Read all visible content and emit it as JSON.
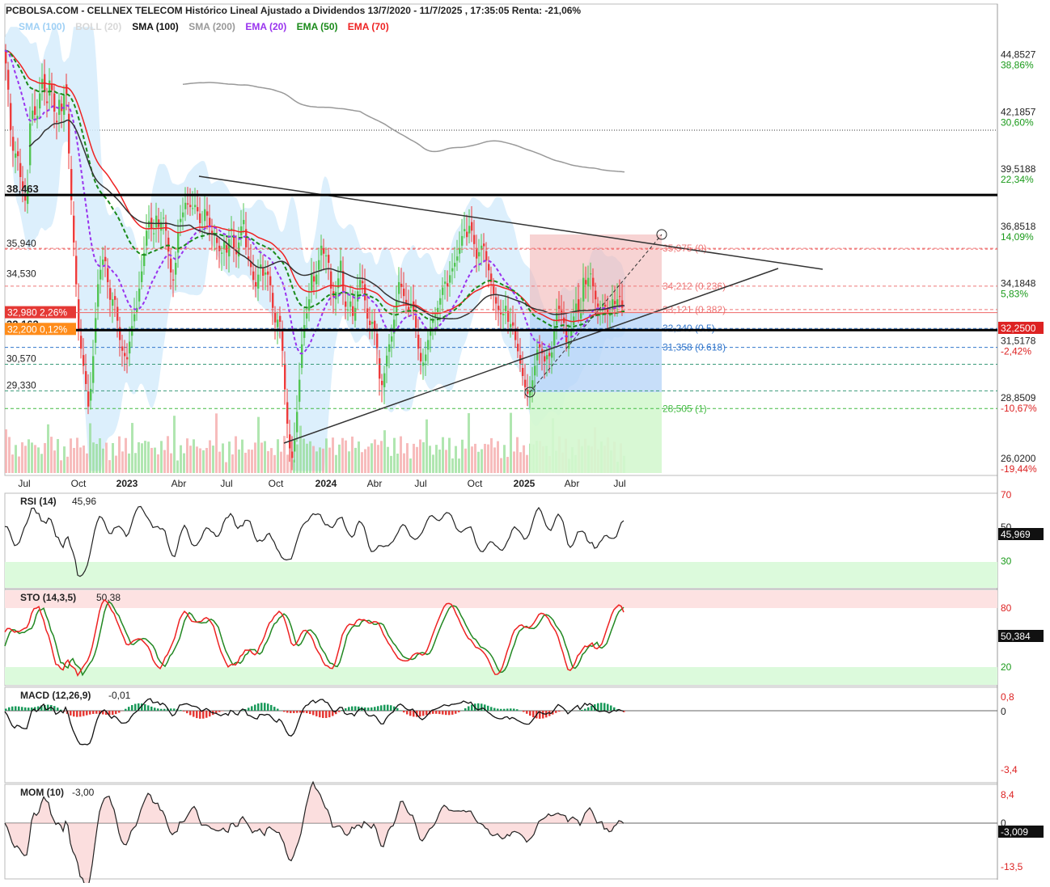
{
  "title": "PCBOLSA.COM - CELLNEX TELECOM Histórico Lineal Ajustado a Dividendos 13/7/2020 - 11/7/2025 , 17:35:05 Renta: -21,06%",
  "legend": [
    {
      "label": "SMA (100)",
      "color": "#9fd0f5"
    },
    {
      "label": "BOLL (20)",
      "color": "#d8d8d8"
    },
    {
      "label": "SMA (100)",
      "color": "#111111"
    },
    {
      "label": "SMA (200)",
      "color": "#999999"
    },
    {
      "label": "EMA (20)",
      "color": "#9933ee"
    },
    {
      "label": "EMA (50)",
      "color": "#1a8a1a"
    },
    {
      "label": "EMA (70)",
      "color": "#ee2222"
    }
  ],
  "colors": {
    "up": "#52c552",
    "down": "#ee3b3b",
    "fib_red": "#ee7777",
    "fib_blue": "#3377cc",
    "fib_green": "#44bb44",
    "price_tag": "#dd2222",
    "rsi_line": "#222222",
    "sto_k": "#ee2222",
    "sto_d": "#228822",
    "zone_green": "#dcfadc",
    "zone_red": "#fde2e2"
  },
  "chart_data": [
    {
      "type": "line",
      "title": "CELLNEX TELECOM",
      "x_tick_labels": [
        "Jul",
        "Oct",
        "2023",
        "Abr",
        "Jul",
        "Oct",
        "2024",
        "Abr",
        "Jul",
        "Oct",
        "2025",
        "Abr",
        "Jul"
      ],
      "y_tick_labels": [
        {
          "price": "44,8527",
          "pct": "38,86%"
        },
        {
          "price": "42,1857",
          "pct": "30,60%"
        },
        {
          "price": "39,5188",
          "pct": "22,34%"
        },
        {
          "price": "36,8518",
          "pct": "14,09%"
        },
        {
          "price": "34,1848",
          "pct": "5,83%"
        },
        {
          "price": "31,5178",
          "pct": "-2,42%"
        },
        {
          "price": "28,8509",
          "pct": "-10,67%"
        },
        {
          "price": "26,0200",
          "pct": "-19,44%"
        }
      ],
      "ylim": [
        25.5,
        46.5
      ],
      "last_price": "32,2500",
      "left_levels": [
        {
          "label": "38,463",
          "value": 38.463
        },
        {
          "label": "35,940",
          "value": 35.94
        },
        {
          "label": "34,530",
          "value": 34.53
        },
        {
          "label": "32,980  2,26%",
          "value": 32.98
        },
        {
          "label": "32,163",
          "value": 32.163
        },
        {
          "label": "32,200  0,12%",
          "value": 32.2
        },
        {
          "label": "30,570",
          "value": 30.57
        },
        {
          "label": "29,330",
          "value": 29.33
        }
      ],
      "fibonacci": [
        {
          "label": "35,975 (0)",
          "value": 35.975
        },
        {
          "label": "34,212 (0.236)",
          "value": 34.212
        },
        {
          "label": "33,121 (0.382)",
          "value": 33.121
        },
        {
          "label": "32,240 (0.5)",
          "value": 32.24
        },
        {
          "label": "31,358 (0.618)",
          "value": 31.358
        },
        {
          "label": "28,505 (1)",
          "value": 28.505
        }
      ],
      "close_points": [
        [
          0,
          45.2
        ],
        [
          4,
          44.0
        ],
        [
          8,
          41.5
        ],
        [
          12,
          40.2
        ],
        [
          16,
          40.6
        ],
        [
          20,
          39.3
        ],
        [
          24,
          38.5
        ],
        [
          28,
          37.9
        ],
        [
          32,
          41.8
        ],
        [
          36,
          42.6
        ],
        [
          40,
          41.8
        ],
        [
          44,
          43.2
        ],
        [
          48,
          44.1
        ],
        [
          52,
          42.4
        ],
        [
          56,
          43.8
        ],
        [
          60,
          43.2
        ],
        [
          64,
          41.5
        ],
        [
          68,
          42.9
        ],
        [
          72,
          42.2
        ],
        [
          76,
          44.1
        ],
        [
          80,
          40.4
        ],
        [
          84,
          37.5
        ],
        [
          88,
          35.0
        ],
        [
          92,
          32.2
        ],
        [
          96,
          31.0
        ],
        [
          100,
          30.0
        ],
        [
          104,
          28.6
        ],
        [
          108,
          29.7
        ],
        [
          112,
          32.2
        ],
        [
          116,
          34.3
        ],
        [
          120,
          35.2
        ],
        [
          124,
          35.7
        ],
        [
          128,
          34.4
        ],
        [
          132,
          33.3
        ],
        [
          136,
          33.9
        ],
        [
          140,
          32.6
        ],
        [
          144,
          31.4
        ],
        [
          148,
          31.0
        ],
        [
          152,
          30.8
        ],
        [
          156,
          31.9
        ],
        [
          160,
          32.8
        ],
        [
          164,
          33.2
        ],
        [
          168,
          34.4
        ],
        [
          172,
          35.4
        ],
        [
          176,
          36.8
        ],
        [
          180,
          37.4
        ],
        [
          184,
          36.4
        ],
        [
          188,
          37.5
        ],
        [
          192,
          36.8
        ],
        [
          196,
          37.6
        ],
        [
          200,
          36.8
        ],
        [
          204,
          35.5
        ],
        [
          208,
          34.2
        ],
        [
          212,
          35.3
        ],
        [
          216,
          37.2
        ],
        [
          220,
          37.5
        ],
        [
          224,
          38.1
        ],
        [
          228,
          38.0
        ],
        [
          232,
          37.8
        ],
        [
          236,
          38.0
        ],
        [
          240,
          37.6
        ],
        [
          244,
          36.7
        ],
        [
          248,
          37.8
        ],
        [
          252,
          37.4
        ],
        [
          256,
          36.6
        ],
        [
          260,
          36.6
        ],
        [
          264,
          36.1
        ],
        [
          268,
          35.6
        ],
        [
          272,
          36.3
        ],
        [
          276,
          35.6
        ],
        [
          280,
          37.2
        ],
        [
          284,
          36.0
        ],
        [
          288,
          35.6
        ],
        [
          292,
          36.9
        ],
        [
          296,
          37.3
        ],
        [
          300,
          35.6
        ],
        [
          304,
          35.3
        ],
        [
          308,
          34.5
        ],
        [
          312,
          34.1
        ],
        [
          316,
          35.4
        ],
        [
          320,
          34.7
        ],
        [
          324,
          34.9
        ],
        [
          328,
          34.6
        ],
        [
          332,
          33.2
        ],
        [
          336,
          32.3
        ],
        [
          340,
          33.0
        ],
        [
          344,
          31.2
        ],
        [
          348,
          28.8
        ],
        [
          352,
          26.8
        ],
        [
          356,
          26.2
        ],
        [
          360,
          27.4
        ],
        [
          364,
          29.3
        ],
        [
          368,
          31.5
        ],
        [
          372,
          32.7
        ],
        [
          376,
          33.2
        ],
        [
          380,
          34.8
        ],
        [
          384,
          34.3
        ],
        [
          388,
          35.2
        ],
        [
          392,
          36.1
        ],
        [
          396,
          35.6
        ],
        [
          400,
          35.7
        ],
        [
          404,
          34.1
        ],
        [
          408,
          33.6
        ],
        [
          412,
          34.3
        ],
        [
          416,
          35.4
        ],
        [
          420,
          33.5
        ],
        [
          424,
          33.0
        ],
        [
          428,
          33.5
        ],
        [
          432,
          32.6
        ],
        [
          436,
          33.8
        ],
        [
          440,
          34.5
        ],
        [
          444,
          34.3
        ],
        [
          448,
          32.8
        ],
        [
          452,
          32.4
        ],
        [
          456,
          32.6
        ],
        [
          460,
          31.8
        ],
        [
          464,
          29.9
        ],
        [
          468,
          29.5
        ],
        [
          472,
          30.8
        ],
        [
          476,
          31.5
        ],
        [
          480,
          32.0
        ],
        [
          484,
          33.3
        ],
        [
          488,
          34.4
        ],
        [
          492,
          34.1
        ],
        [
          496,
          33.4
        ],
        [
          500,
          33.1
        ],
        [
          504,
          33.5
        ],
        [
          508,
          32.6
        ],
        [
          512,
          31.3
        ],
        [
          516,
          30.5
        ],
        [
          520,
          30.8
        ],
        [
          524,
          31.7
        ],
        [
          528,
          32.5
        ],
        [
          532,
          32.8
        ],
        [
          536,
          33.2
        ],
        [
          540,
          33.8
        ],
        [
          544,
          34.5
        ],
        [
          548,
          34.2
        ],
        [
          552,
          34.9
        ],
        [
          556,
          35.2
        ],
        [
          560,
          35.6
        ],
        [
          564,
          36.1
        ],
        [
          568,
          37.0
        ],
        [
          572,
          36.5
        ],
        [
          576,
          37.2
        ],
        [
          580,
          36.4
        ],
        [
          584,
          35.5
        ],
        [
          588,
          35.9
        ],
        [
          592,
          36.3
        ],
        [
          596,
          35.4
        ],
        [
          600,
          34.8
        ],
        [
          604,
          34.0
        ],
        [
          608,
          33.4
        ],
        [
          612,
          33.0
        ],
        [
          616,
          32.8
        ],
        [
          620,
          33.3
        ],
        [
          624,
          32.3
        ],
        [
          628,
          32.6
        ],
        [
          632,
          31.7
        ],
        [
          636,
          31.0
        ],
        [
          640,
          30.2
        ],
        [
          644,
          29.5
        ],
        [
          648,
          29.1
        ],
        [
          652,
          29.6
        ],
        [
          656,
          30.5
        ],
        [
          660,
          31.5
        ],
        [
          664,
          31.2
        ],
        [
          668,
          30.7
        ],
        [
          672,
          31.1
        ],
        [
          676,
          30.8
        ],
        [
          680,
          32.1
        ],
        [
          684,
          33.3
        ],
        [
          688,
          33.0
        ],
        [
          692,
          32.5
        ],
        [
          696,
          31.3
        ],
        [
          700,
          32.0
        ],
        [
          704,
          32.8
        ],
        [
          708,
          33.6
        ],
        [
          712,
          32.4
        ],
        [
          716,
          34.6
        ],
        [
          720,
          34.2
        ],
        [
          724,
          35.0
        ],
        [
          728,
          34.2
        ],
        [
          732,
          33.4
        ],
        [
          736,
          33.1
        ],
        [
          740,
          33.4
        ],
        [
          744,
          33.2
        ],
        [
          748,
          32.7
        ],
        [
          752,
          33.6
        ],
        [
          756,
          33.3
        ],
        [
          760,
          33.9
        ],
        [
          764,
          33.2
        ],
        [
          768,
          33.8
        ],
        [
          772,
          32.25
        ]
      ],
      "indicators": [
        {
          "name": "RSI (14)",
          "value": "45,96",
          "last_tag": "45,969",
          "ticks": [
            "70",
            "50",
            "30"
          ]
        },
        {
          "name": "STO (14,3,5)",
          "value": "50,38",
          "last_tag": "50,384",
          "ticks": [
            "80",
            "20"
          ]
        },
        {
          "name": "MACD (12,26,9)",
          "value": "-0,01",
          "last_tag": "",
          "ticks": [
            "0,8",
            "0",
            "-3,4"
          ]
        },
        {
          "name": "MOM (10)",
          "value": "-3,00",
          "last_tag": "-3,009",
          "ticks": [
            "8,4",
            "0",
            "-13,5"
          ]
        }
      ]
    }
  ]
}
